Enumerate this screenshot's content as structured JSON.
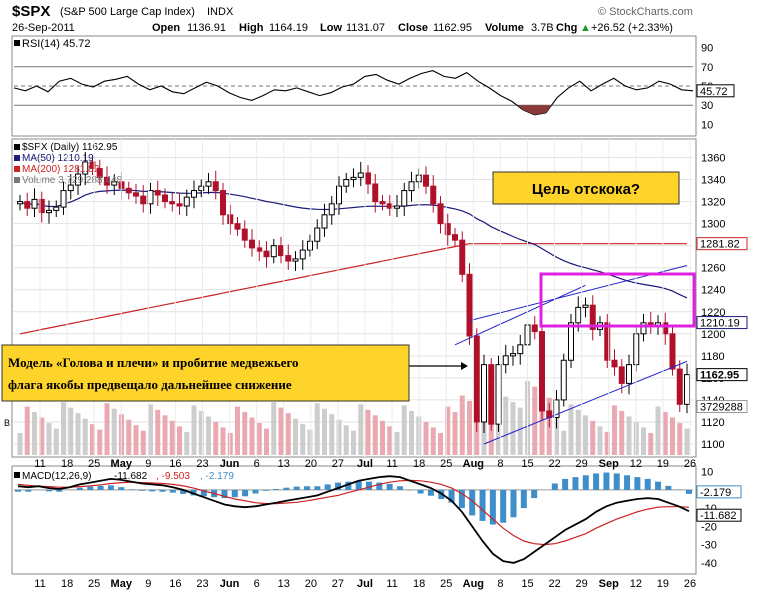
{
  "header": {
    "symbol": "$SPX",
    "name": "(S&P 500 Large Cap Index)",
    "exchange": "INDX",
    "date": "26-Sep-2011",
    "brand": "© StockCharts.com",
    "open_label": "Open",
    "open": "1136.91",
    "high_label": "High",
    "high": "1164.19",
    "low_label": "Low",
    "low": "1131.07",
    "close_label": "Close",
    "close": "1162.95",
    "volume_label": "Volume",
    "volume": "3.7B",
    "chg_label": "Chg",
    "chg": "+26.52 (+2.33%)",
    "chg_arrow": "▲"
  },
  "chart_data": [
    {
      "type": "line",
      "panel": "RSI",
      "legend": "RSI(14) 45.72",
      "last_value_label": "45.72",
      "y_ticks": [
        90,
        70,
        50,
        30,
        10
      ],
      "ylim": [
        0,
        100
      ],
      "reference_lines": [
        70,
        50,
        30
      ],
      "series": [
        {
          "name": "RSI(14)",
          "values": [
            48,
            45,
            50,
            44,
            55,
            58,
            52,
            49,
            55,
            57,
            60,
            52,
            46,
            50,
            44,
            42,
            48,
            54,
            50,
            43,
            38,
            35,
            40,
            46,
            45,
            48,
            44,
            40,
            43,
            49,
            52,
            60,
            62,
            56,
            52,
            58,
            63,
            66,
            60,
            58,
            64,
            55,
            48,
            40,
            34,
            25,
            20,
            22,
            38,
            48,
            55,
            45,
            52,
            58,
            50,
            46,
            48,
            55,
            52,
            46,
            45
          ]
        }
      ]
    },
    {
      "type": "candlestick",
      "panel": "price",
      "legend": [
        {
          "label": "$SPX (Daily) 1162.95",
          "color": "#000000"
        },
        {
          "label": "MA(50) 1210.19",
          "color": "#1a1a7a"
        },
        {
          "label": "MA(200) 1281.82",
          "color": "#cc2222"
        },
        {
          "label": "Volume 3,729,288,448",
          "color": "#777777"
        }
      ],
      "y_ticks": [
        1360,
        1340,
        1320,
        1300,
        1280,
        1260,
        1240,
        1220,
        1200,
        1180,
        1160,
        1140,
        1120,
        1100
      ],
      "ylim": [
        1090,
        1375
      ],
      "price_tags": [
        {
          "label": "1281.82",
          "value": 1281.82,
          "style": "ma200"
        },
        {
          "label": "1210.19",
          "value": 1210.19,
          "style": "ma50"
        },
        {
          "label": "1162.95",
          "value": 1162.95,
          "style": "close"
        },
        {
          "label": "3729288",
          "value": 1134,
          "style": "volume"
        }
      ],
      "x_labels": [
        "11",
        "18",
        "25",
        "May",
        "9",
        "16",
        "23",
        "Jun",
        "6",
        "13",
        "20",
        "27",
        "Jul",
        "11",
        "18",
        "25",
        "Aug",
        "8",
        "15",
        "22",
        "29",
        "Sep",
        "12",
        "19",
        "26"
      ],
      "close": [
        1320,
        1314,
        1322,
        1310,
        1312,
        1315,
        1330,
        1335,
        1345,
        1356,
        1350,
        1342,
        1335,
        1338,
        1332,
        1328,
        1325,
        1318,
        1330,
        1326,
        1320,
        1318,
        1316,
        1324,
        1330,
        1334,
        1338,
        1330,
        1308,
        1300,
        1295,
        1285,
        1278,
        1275,
        1270,
        1280,
        1271,
        1266,
        1268,
        1276,
        1284,
        1296,
        1308,
        1318,
        1334,
        1340,
        1342,
        1346,
        1336,
        1320,
        1318,
        1314,
        1316,
        1330,
        1338,
        1344,
        1334,
        1318,
        1300,
        1290,
        1285,
        1254,
        1198,
        1120,
        1172,
        1118,
        1172,
        1180,
        1182,
        1190,
        1208,
        1202,
        1130,
        1124,
        1140,
        1176,
        1210,
        1224,
        1226,
        1204,
        1210,
        1176,
        1170,
        1155,
        1172,
        1200,
        1210,
        1208,
        1210,
        1200,
        1168,
        1136,
        1162.95
      ]
    },
    {
      "type": "line",
      "panel": "MACD",
      "legend": [
        {
          "label": "MACD(12,26,9)",
          "color": "#000000"
        },
        {
          "label": "-11.682",
          "color": "#000000"
        },
        {
          "label": ", -9.503",
          "color": "#cc2222"
        },
        {
          "label": ", -2.179",
          "color": "#3d8ec9"
        }
      ],
      "y_ticks": [
        10,
        0,
        -10,
        -20,
        -30,
        -40
      ],
      "ylim": [
        -45,
        12
      ],
      "last_value_labels": [
        "-2.179",
        "-11.682"
      ],
      "series": [
        {
          "name": "MACD(12,26,9)",
          "values": [
            2,
            1.5,
            2,
            1,
            0.5,
            1.5,
            3,
            4,
            5,
            6,
            5.5,
            4.5,
            3.5,
            3,
            2.5,
            1.5,
            0,
            -2,
            -4,
            -6,
            -8,
            -9,
            -9.5,
            -9,
            -8,
            -7,
            -6,
            -5,
            -4,
            -3,
            -1,
            1,
            3,
            5,
            6,
            7,
            7.5,
            7,
            5,
            3,
            1,
            -2,
            -6,
            -12,
            -20,
            -28,
            -35,
            -39,
            -40,
            -38,
            -34,
            -30,
            -26,
            -22,
            -19,
            -16,
            -12,
            -9,
            -7,
            -6,
            -5,
            -4.5,
            -5,
            -7,
            -9,
            -11.682
          ]
        },
        {
          "name": "Signal",
          "values": [
            3,
            2.5,
            2,
            1.8,
            1.5,
            1.5,
            1.8,
            2.2,
            2.8,
            3.5,
            4,
            4.2,
            4,
            3.8,
            3.5,
            3,
            2.2,
            1,
            -0.5,
            -2,
            -3.5,
            -5,
            -6,
            -7,
            -7.5,
            -7.5,
            -7.2,
            -6.8,
            -6,
            -5,
            -4,
            -3,
            -1.5,
            0,
            1.5,
            3,
            4.2,
            5,
            5.2,
            5,
            4.2,
            3,
            1,
            -2,
            -6,
            -11,
            -16,
            -21,
            -25,
            -28,
            -29.5,
            -30,
            -29.5,
            -28,
            -26,
            -24,
            -21,
            -18.5,
            -16,
            -14,
            -12,
            -10.5,
            -9.5,
            -9.2,
            -9.2,
            -9.503
          ]
        },
        {
          "name": "Histogram",
          "values": [
            -1,
            -1,
            0,
            -0.8,
            -1,
            0,
            1.2,
            1.8,
            2.2,
            2.5,
            1.5,
            0.3,
            -0.5,
            -0.8,
            -1,
            -1.5,
            -2.2,
            -3,
            -3.5,
            -4,
            -4.5,
            -4,
            -3.5,
            -2,
            -0.5,
            0.5,
            1.2,
            1.8,
            2,
            2,
            3,
            4,
            4.5,
            5,
            4.5,
            4,
            3.3,
            2,
            -0.2,
            -2,
            -3.2,
            -5,
            -7,
            -10,
            -14,
            -17,
            -19,
            -18,
            -15,
            -10,
            -4.5,
            0,
            3.5,
            6,
            7,
            8,
            9,
            9.5,
            9,
            8,
            7,
            6,
            4.5,
            2.2,
            0.2,
            -2.179
          ]
        }
      ]
    }
  ],
  "annotations": {
    "target_box_text": "Цель отскока?",
    "note_line1": "Модель «Голова и плечи» и пробитие медвежьего",
    "note_line2": "флага якобы предвещало дальнейшее снижение"
  }
}
